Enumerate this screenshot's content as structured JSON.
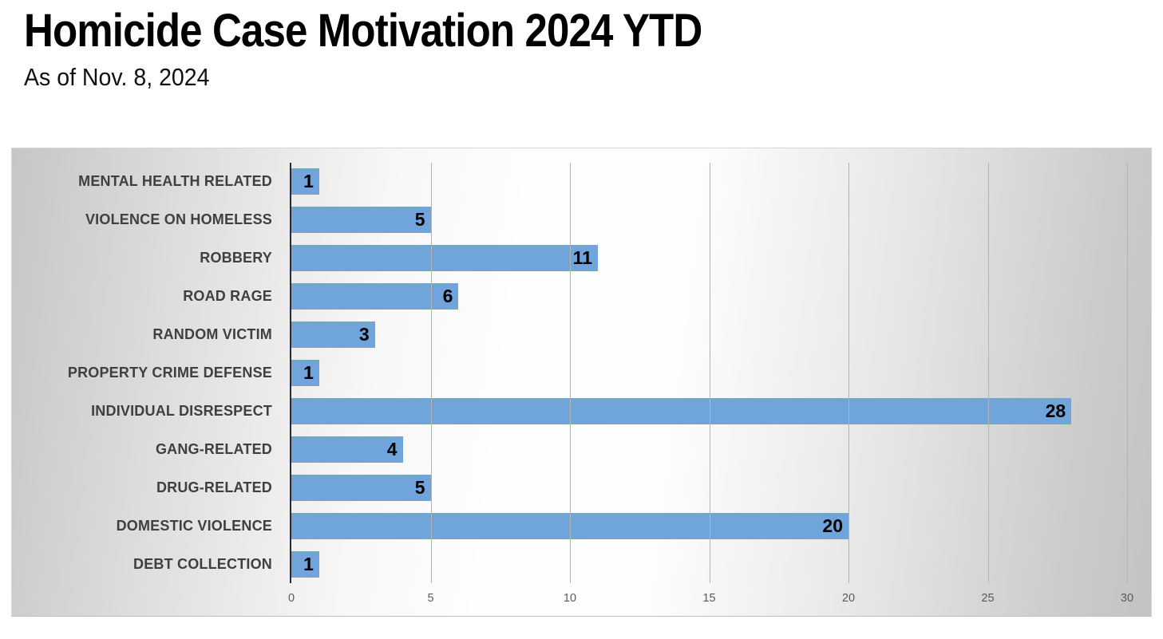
{
  "header": {
    "title": "Homicide Case Motivation 2024 YTD",
    "subtitle": "As of Nov. 8, 2024"
  },
  "chart_data": {
    "type": "bar",
    "orientation": "horizontal",
    "title": "Homicide Case Motivation 2024 YTD",
    "subtitle": "As of Nov. 8, 2024",
    "categories": [
      "MENTAL HEALTH RELATED",
      "VIOLENCE ON HOMELESS",
      "ROBBERY",
      "ROAD RAGE",
      "RANDOM VICTIM",
      "PROPERTY CRIME DEFENSE",
      "INDIVIDUAL DISRESPECT",
      "GANG-RELATED",
      "DRUG-RELATED",
      "DOMESTIC VIOLENCE",
      "DEBT COLLECTION"
    ],
    "values": [
      1,
      5,
      11,
      6,
      3,
      1,
      28,
      4,
      5,
      20,
      1
    ],
    "xlabel": "",
    "ylabel": "",
    "xlim": [
      0,
      30
    ],
    "xticks": [
      0,
      5,
      10,
      15,
      20,
      25,
      30
    ],
    "grid": "vertical-major-every-5",
    "legend": "none",
    "data_labels": "inside-end",
    "colors": {
      "bar": "#6FA5DB",
      "value_label": "#000000",
      "category_label": "#3F3F3F",
      "tick_label": "#595959",
      "gridline": "#B3B3B3",
      "axis_line": "#2B2B2B",
      "plot_bg_gradient_edges": "#C6C6C6",
      "plot_bg_gradient_center": "#FEFEFE"
    }
  }
}
